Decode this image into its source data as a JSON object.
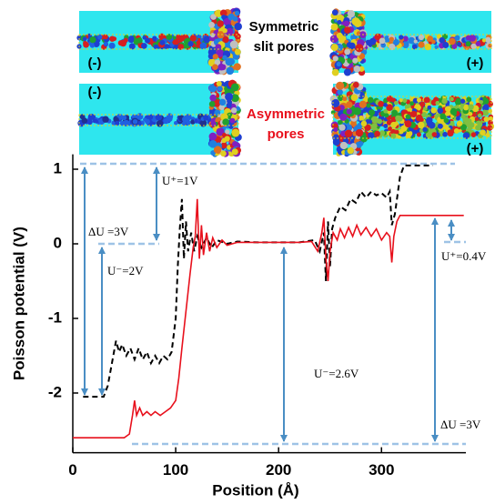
{
  "insets": {
    "top_title": [
      "Symmetric",
      "slit pores"
    ],
    "bottom_title": [
      "Asymmetric",
      "pores"
    ],
    "signs": [
      "(-)",
      "(+)",
      "(-)",
      "(+)"
    ]
  },
  "chart_data": {
    "type": "line",
    "xlabel": "Position (Å)",
    "ylabel": "Poisson potential (V)",
    "xlim": [
      0,
      382
    ],
    "ylim": [
      -2.8,
      1.2
    ],
    "xticks": [
      0,
      100,
      200,
      300
    ],
    "yticks": [
      1,
      0,
      -1,
      -2
    ],
    "series": [
      {
        "color": "#000000",
        "dash": true,
        "x": [
          10,
          30,
          34,
          38,
          42,
          45,
          48,
          52,
          56,
          60,
          64,
          68,
          72,
          76,
          80,
          84,
          88,
          92,
          96,
          100,
          102,
          104,
          106,
          108,
          110,
          112,
          115,
          118,
          121,
          125,
          130,
          135,
          140,
          150,
          160,
          180,
          200,
          220,
          235,
          240,
          244,
          246,
          248,
          250,
          252,
          255,
          260,
          265,
          270,
          275,
          280,
          285,
          290,
          295,
          300,
          305,
          308,
          310,
          313,
          318,
          322,
          350
        ],
        "values": [
          -2.05,
          -2.05,
          -1.9,
          -1.6,
          -1.3,
          -1.45,
          -1.35,
          -1.5,
          -1.4,
          -1.55,
          -1.4,
          -1.55,
          -1.45,
          -1.6,
          -1.5,
          -1.6,
          -1.5,
          -1.55,
          -1.45,
          -1.0,
          -0.3,
          0.2,
          0.6,
          -0.2,
          0.3,
          -0.1,
          0.15,
          -0.1,
          0.1,
          -0.05,
          0.08,
          -0.05,
          0.05,
          0,
          0.03,
          0.02,
          0.02,
          0.02,
          0.05,
          -0.1,
          0.15,
          -0.5,
          0.3,
          -0.3,
          0.2,
          0.35,
          0.5,
          0.45,
          0.6,
          0.55,
          0.7,
          0.62,
          0.7,
          0.65,
          0.68,
          0.62,
          0.7,
          0.25,
          0.4,
          0.9,
          1.05,
          1.05
        ]
      },
      {
        "color": "#e8101c",
        "dash": false,
        "x": [
          0,
          50,
          55,
          58,
          60,
          62,
          65,
          68,
          72,
          76,
          80,
          85,
          90,
          95,
          100,
          103,
          106,
          110,
          114,
          117,
          119,
          121,
          123,
          125,
          127,
          130,
          133,
          136,
          140,
          145,
          150,
          160,
          180,
          200,
          220,
          232,
          238,
          242,
          244,
          246,
          248,
          250,
          253,
          257,
          260,
          264,
          268,
          272,
          276,
          280,
          285,
          290,
          295,
          300,
          305,
          308,
          310,
          312,
          315,
          318,
          380
        ],
        "values": [
          -2.6,
          -2.6,
          -2.55,
          -2.3,
          -2.1,
          -2.3,
          -2.2,
          -2.3,
          -2.25,
          -2.3,
          -2.25,
          -2.3,
          -2.25,
          -2.2,
          -2.1,
          -1.8,
          -1.4,
          -0.9,
          -0.4,
          -0.05,
          0.1,
          0.6,
          -0.2,
          0.25,
          -0.15,
          0.15,
          -0.1,
          0.08,
          -0.05,
          0.05,
          -0.02,
          0.02,
          0.02,
          0.02,
          0.02,
          0.03,
          -0.1,
          0.15,
          0.35,
          -0.2,
          -0.5,
          -0.1,
          0.15,
          0.05,
          0.2,
          0.08,
          0.22,
          0.1,
          0.25,
          0.12,
          0.22,
          0.1,
          0.2,
          0.05,
          0.15,
          0.1,
          -0.25,
          0.1,
          0.3,
          0.38,
          0.38
        ]
      }
    ],
    "annotations": [
      "ΔU =3V",
      "U⁺=1V",
      "U⁻=2V",
      "U⁻=2.6V",
      "ΔU =3V",
      "U⁺=0.4V"
    ]
  }
}
